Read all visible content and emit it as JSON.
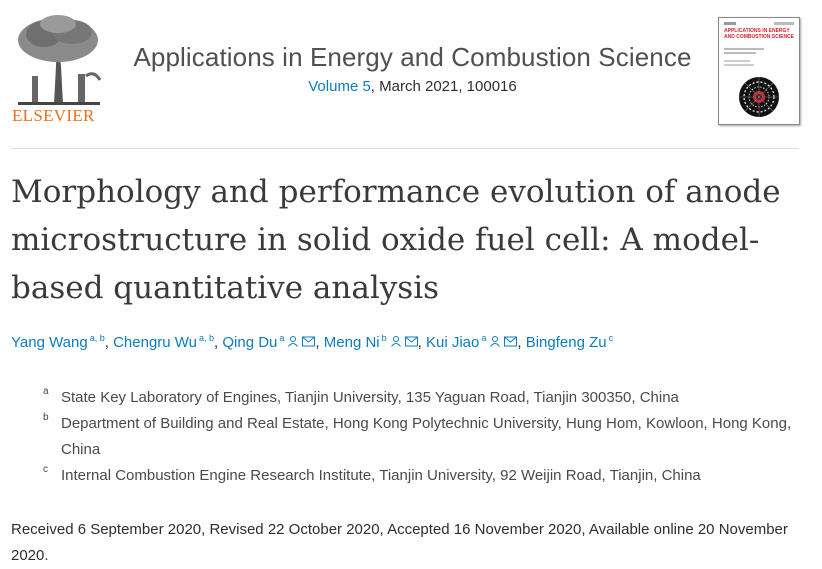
{
  "publisher": {
    "name": "ELSEVIER"
  },
  "journal": {
    "title": "Applications in Energy and Combustion Science",
    "volume_link": "Volume 5",
    "issue_info": ", March 2021, 100016"
  },
  "cover": {
    "title": "APPLICATIONS IN ENERGY AND COMBUSTION SCIENCE"
  },
  "article": {
    "title": "Morphology and performance evolution of anode microstructure in solid oxide fuel cell: A model-based quantitative analysis"
  },
  "authors": [
    {
      "name": "Yang Wang",
      "affil": "a, b",
      "corresponding": false,
      "email": false
    },
    {
      "name": "Chengru Wu",
      "affil": "a, b",
      "corresponding": false,
      "email": false
    },
    {
      "name": "Qing Du",
      "affil": "a",
      "corresponding": true,
      "email": true
    },
    {
      "name": "Meng Ni",
      "affil": "b",
      "corresponding": true,
      "email": true
    },
    {
      "name": "Kui Jiao",
      "affil": "a",
      "corresponding": true,
      "email": true
    },
    {
      "name": "Bingfeng Zu",
      "affil": "c",
      "corresponding": false,
      "email": false
    }
  ],
  "affiliations": [
    {
      "label": "a",
      "text": "State Key Laboratory of Engines, Tianjin University, 135 Yaguan Road, Tianjin 300350, China"
    },
    {
      "label": "b",
      "text": "Department of Building and Real Estate, Hong Kong Polytechnic University, Hung Hom, Kowloon, Hong Kong, China"
    },
    {
      "label": "c",
      "text": "Internal Combustion Engine Research Institute, Tianjin University, 92 Weijin Road, Tianjin, China"
    }
  ],
  "dates": "Received 6 September 2020, Revised 22 October 2020, Accepted 16 November 2020, Available online 20 November 2020.",
  "colors": {
    "link": "#0c7dbb",
    "publisher": "#e9711c",
    "cover_accent": "#d6262d"
  },
  "icons": {
    "corresponding": "person-icon",
    "email": "envelope-icon"
  }
}
